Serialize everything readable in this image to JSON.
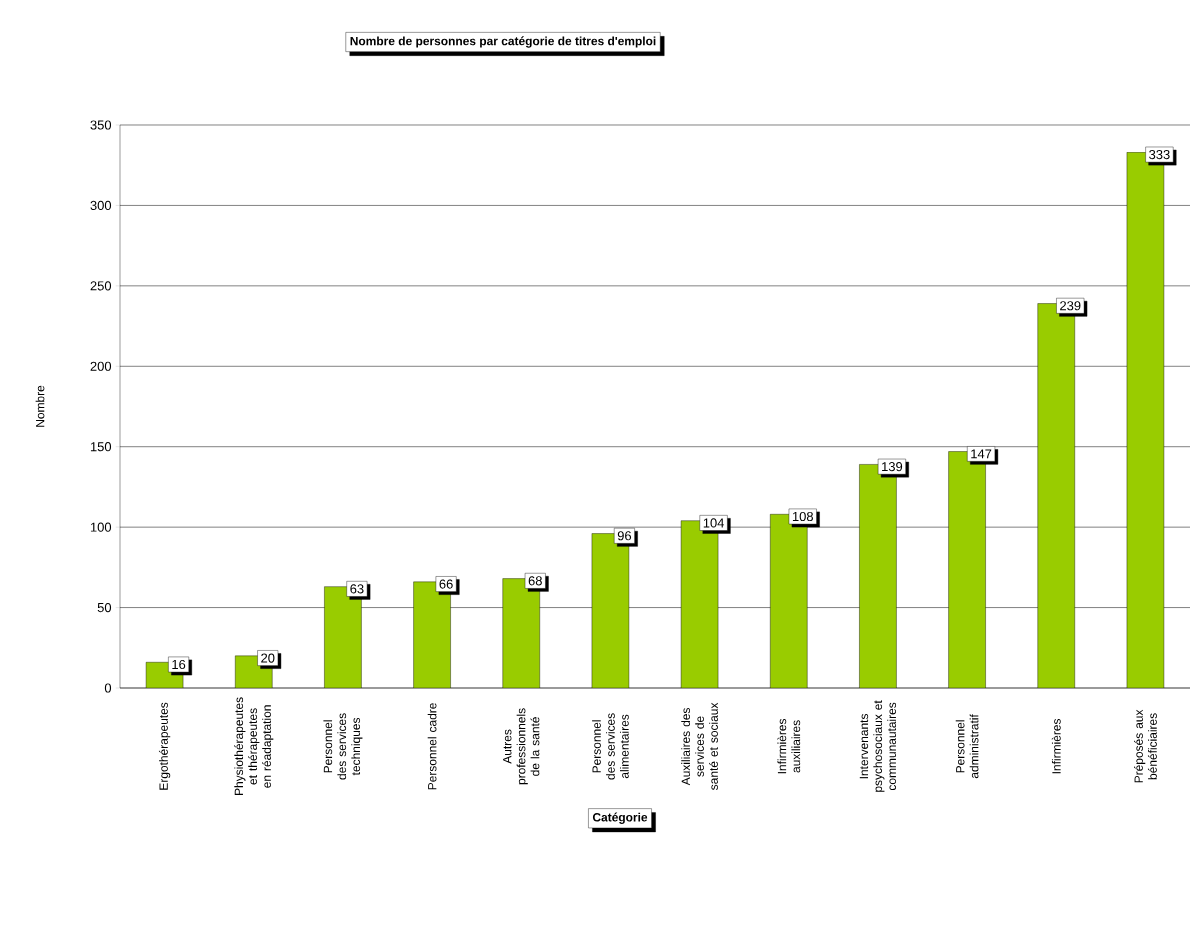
{
  "chart_data": {
    "type": "bar",
    "title": "Nombre de personnes par catégorie de titres d'emploi",
    "xlabel": "Catégorie",
    "ylabel": "Nombre",
    "categories": [
      "Ergothérapeutes",
      "Physiothérapeutes et thérapeutes en réadaptation",
      "Personnel des services techniques",
      "Personnel cadre",
      "Autres professionnels de la santé",
      "Personnel des services alimentaires",
      "Auxiliaires des services de santé et sociaux",
      "Infirmières auxiliaires",
      "Intervenants psychosociaux et communautaires",
      "Personnel administratif",
      "Infirmières",
      "Préposés aux bénéficiaires"
    ],
    "values": [
      16,
      20,
      63,
      66,
      68,
      96,
      104,
      108,
      139,
      147,
      239,
      333
    ],
    "color": "#99cc00",
    "ylim": [
      0,
      350
    ],
    "yticks": [
      0,
      50,
      100,
      150,
      200,
      250,
      300,
      350
    ],
    "grid": "y",
    "data_labels": true
  }
}
